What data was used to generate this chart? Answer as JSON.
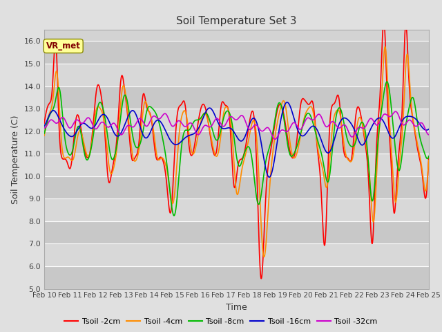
{
  "title": "Soil Temperature Set 3",
  "xlabel": "Time",
  "ylabel": "Soil Temperature (C)",
  "ylim": [
    5.0,
    16.5
  ],
  "yticks": [
    5.0,
    6.0,
    7.0,
    8.0,
    9.0,
    10.0,
    11.0,
    12.0,
    13.0,
    14.0,
    15.0,
    16.0
  ],
  "x_labels": [
    "Feb 10",
    "Feb 11",
    "Feb 12",
    "Feb 13",
    "Feb 14",
    "Feb 15",
    "Feb 16",
    "Feb 17",
    "Feb 18",
    "Feb 19",
    "Feb 20",
    "Feb 21",
    "Feb 22",
    "Feb 23",
    "Feb 24",
    "Feb 25"
  ],
  "series_colors": [
    "#ff0000",
    "#ff8c00",
    "#00bb00",
    "#0000cc",
    "#cc00cc"
  ],
  "series_names": [
    "Tsoil -2cm",
    "Tsoil -4cm",
    "Tsoil -8cm",
    "Tsoil -16cm",
    "Tsoil -32cm"
  ],
  "background_color": "#e0e0e0",
  "plot_bg_color": "#d3d3d3",
  "grid_color": "#ffffff",
  "legend_box_facecolor": "#ffff99",
  "legend_box_edgecolor": "#888800",
  "legend_label": "VR_met",
  "legend_label_color": "#800000",
  "lw": 1.2
}
